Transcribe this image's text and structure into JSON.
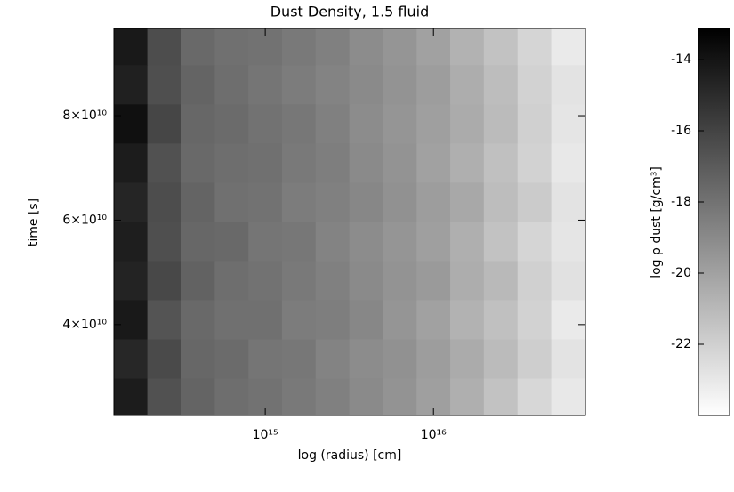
{
  "chart_data": {
    "type": "heatmap",
    "title": "Dust Density, 1.5 fluid",
    "x_label": "log (radius) [cm]",
    "y_label": "time [s]",
    "colorbar_label": "log ρ dust [g/cm³]",
    "x_log": true,
    "xlim": [
      126000000000000.0,
      8e+16
    ],
    "xticks": [
      {
        "value": 1000000000000000.0,
        "label": "10¹⁵"
      },
      {
        "value": 1e+16,
        "label": "10¹⁶"
      }
    ],
    "ylim": [
      22600000000.0,
      96700000000.0
    ],
    "yticks": [
      {
        "value": 40000000000.0,
        "label": "4×10¹⁰"
      },
      {
        "value": 60000000000.0,
        "label": "6×10¹⁰"
      },
      {
        "value": 80000000000.0,
        "label": "8×10¹⁰"
      }
    ],
    "zlim": [
      -24,
      -13.125
    ],
    "zticks": [
      -14,
      -16,
      -18,
      -20,
      -22
    ],
    "x": [
      158000000000000.0,
      251000000000000.0,
      398000000000000.0,
      631000000000000.0,
      1000000000000000.0,
      1580000000000000.0,
      2510000000000000.0,
      3980000000000000.0,
      6310000000000000.0,
      1e+16,
      1.58e+16,
      2.51e+16,
      3.98e+16,
      6.31e+16
    ],
    "y": [
      26000000000.0,
      33500000000.0,
      41000000000.0,
      48500000000.0,
      56000000000.0,
      63500000000.0,
      71000000000.0,
      78500000000.0,
      86000000000.0,
      93500000000.0
    ],
    "z": [
      [
        -14.3,
        -16.6,
        -17.4,
        -17.8,
        -18.0,
        -18.3,
        -18.6,
        -19.0,
        -19.4,
        -19.9,
        -20.6,
        -21.4,
        -22.3,
        -23.0
      ],
      [
        -14.8,
        -16.3,
        -17.5,
        -17.7,
        -18.1,
        -18.2,
        -18.7,
        -19.1,
        -19.3,
        -19.8,
        -20.4,
        -21.1,
        -21.9,
        -22.8
      ],
      [
        -14.2,
        -16.7,
        -17.6,
        -17.9,
        -17.9,
        -18.4,
        -18.5,
        -18.9,
        -19.5,
        -20.0,
        -20.7,
        -21.3,
        -22.1,
        -23.1
      ],
      [
        -14.6,
        -16.2,
        -17.3,
        -17.8,
        -18.0,
        -18.3,
        -18.6,
        -19.0,
        -19.4,
        -19.7,
        -20.5,
        -21.0,
        -22.0,
        -22.7
      ],
      [
        -14.4,
        -16.5,
        -17.5,
        -17.6,
        -18.1,
        -18.2,
        -18.7,
        -19.1,
        -19.5,
        -19.9,
        -20.6,
        -21.4,
        -22.2,
        -22.9
      ],
      [
        -14.7,
        -16.4,
        -17.4,
        -17.9,
        -18.0,
        -18.4,
        -18.6,
        -18.9,
        -19.3,
        -19.8,
        -20.3,
        -21.2,
        -21.8,
        -22.8
      ],
      [
        -14.3,
        -16.6,
        -17.6,
        -17.8,
        -17.9,
        -18.3,
        -18.5,
        -19.0,
        -19.4,
        -20.0,
        -20.6,
        -21.3,
        -22.1,
        -23.0
      ],
      [
        -13.8,
        -16.1,
        -17.5,
        -17.7,
        -18.0,
        -18.2,
        -18.6,
        -19.1,
        -19.5,
        -19.9,
        -20.4,
        -21.1,
        -22.0,
        -22.9
      ],
      [
        -14.5,
        -16.5,
        -17.4,
        -17.8,
        -18.1,
        -18.4,
        -18.7,
        -19.0,
        -19.4,
        -19.8,
        -20.5,
        -21.2,
        -22.1,
        -22.8
      ],
      [
        -14.2,
        -16.4,
        -17.6,
        -17.9,
        -18.0,
        -18.3,
        -18.6,
        -19.1,
        -19.5,
        -20.0,
        -20.7,
        -21.4,
        -22.2,
        -23.1
      ]
    ]
  }
}
